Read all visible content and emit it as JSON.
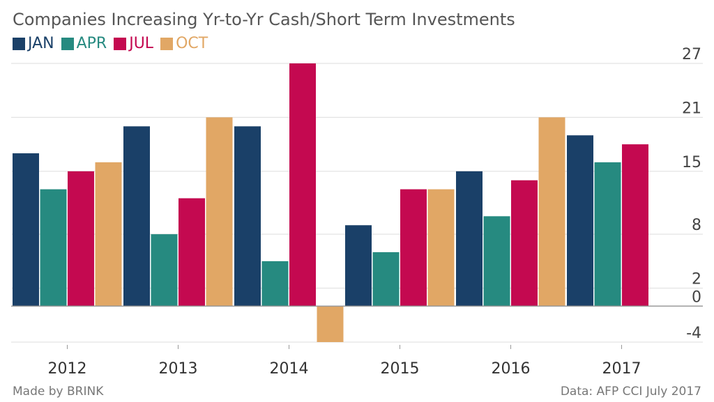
{
  "chart_data": {
    "type": "bar",
    "title": "Companies Increasing Yr-to-Yr Cash/Short Term Investments",
    "categories": [
      "2012",
      "2013",
      "2014",
      "2015",
      "2016",
      "2017"
    ],
    "series": [
      {
        "name": "JAN",
        "color": "#1a4068",
        "values": [
          17,
          20,
          20,
          9,
          15,
          19
        ]
      },
      {
        "name": "APR",
        "color": "#268a80",
        "values": [
          13,
          8,
          5,
          6,
          10,
          16
        ]
      },
      {
        "name": "JUL",
        "color": "#c40950",
        "values": [
          15,
          12,
          27,
          13,
          14,
          18
        ]
      },
      {
        "name": "OCT",
        "color": "#e1a765",
        "values": [
          16,
          21,
          -4,
          13,
          21,
          null
        ]
      }
    ],
    "yticks": [
      27,
      21,
      15,
      8,
      2,
      0,
      -4
    ],
    "ylim": [
      -4,
      27
    ],
    "grid": true,
    "legend_position": "top-left"
  },
  "footer": {
    "left": "Made by BRINK",
    "right": "Data: AFP CCI July 2017"
  }
}
